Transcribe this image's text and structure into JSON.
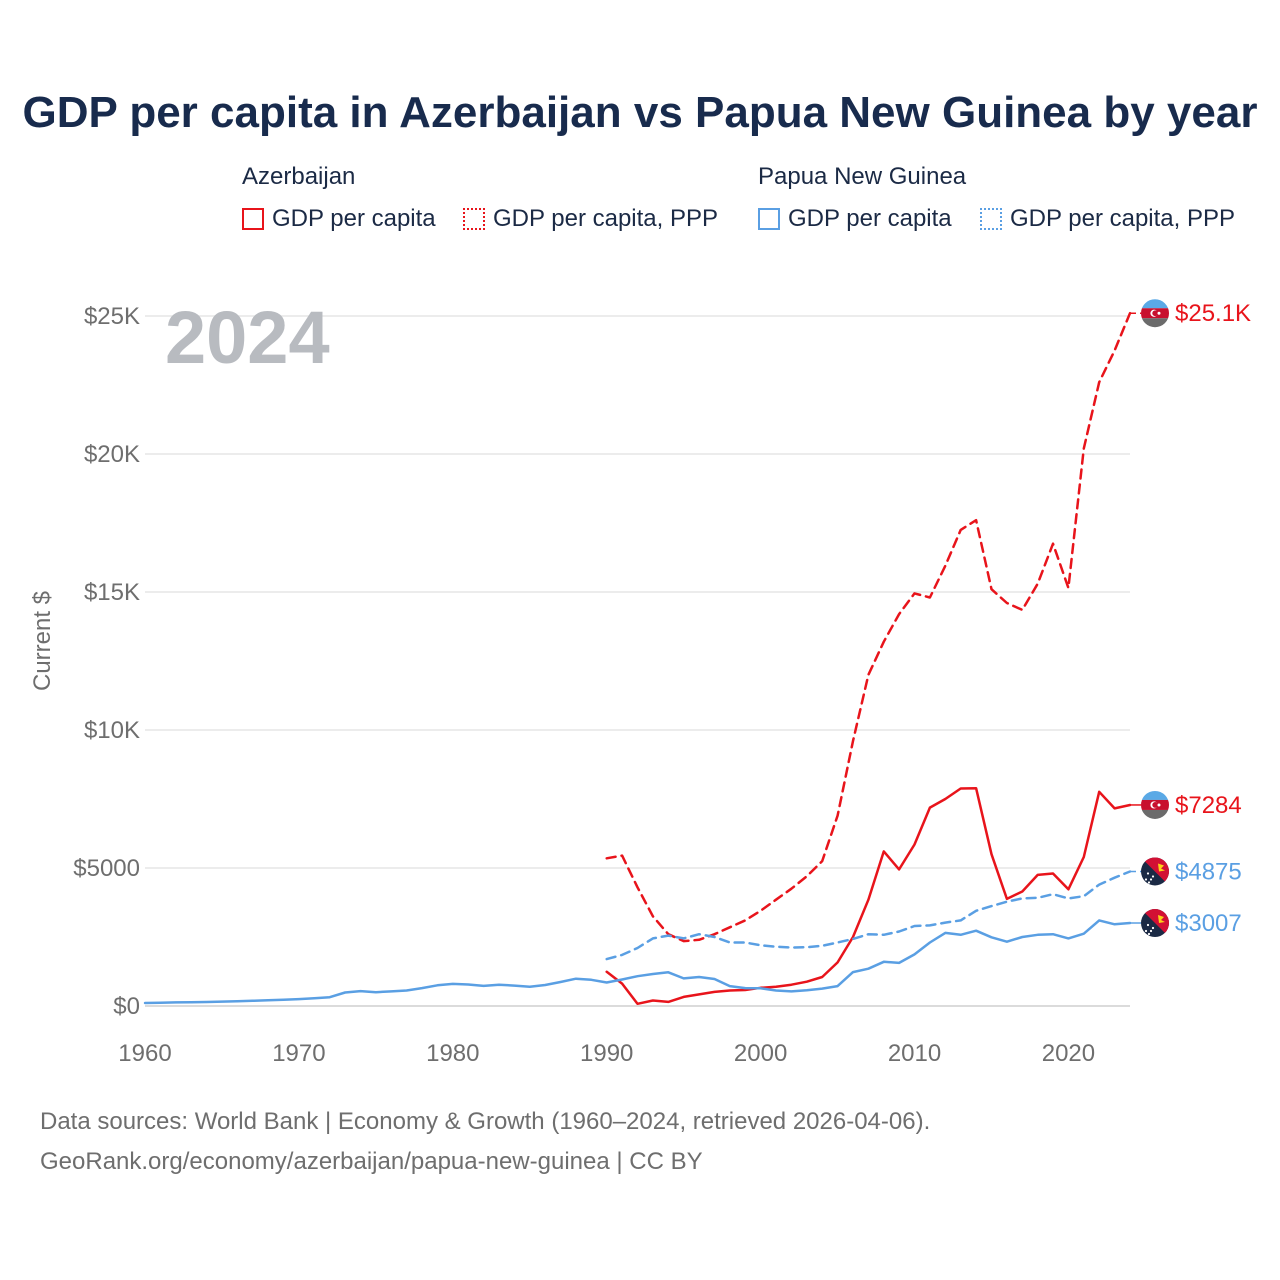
{
  "page": {
    "title": "GDP per capita in Azerbaijan vs Papua New Guinea by year",
    "year_watermark": "2024",
    "footer_line1": "Data sources: World Bank | Economy & Growth (1960–2024, retrieved 2026-04-06).",
    "footer_line2": "GeoRank.org/economy/azerbaijan/papua-new-guinea | CC BY"
  },
  "legend": {
    "groups": [
      {
        "name": "Azerbaijan",
        "items": [
          "GDP per capita",
          "GDP per capita, PPP"
        ],
        "color": "#e8141b"
      },
      {
        "name": "Papua New Guinea",
        "items": [
          "GDP per capita",
          "GDP per capita, PPP"
        ],
        "color": "#5a9fe3"
      }
    ]
  },
  "chart_data": {
    "type": "line",
    "title": "GDP per capita in Azerbaijan vs Papua New Guinea by year",
    "xlabel": "",
    "ylabel": "Current $",
    "xlim": [
      1960,
      2024
    ],
    "ylim": [
      0,
      25000
    ],
    "x_ticks": [
      1960,
      1970,
      1980,
      1990,
      2000,
      2010,
      2020
    ],
    "x_tick_labels": [
      "1960",
      "1970",
      "1980",
      "1990",
      "2000",
      "2010",
      "2020"
    ],
    "y_ticks": [
      0,
      5000,
      10000,
      15000,
      20000,
      25000
    ],
    "y_tick_labels": [
      "$0",
      "$5000",
      "$10K",
      "$15K",
      "$20K",
      "$25K"
    ],
    "grid": true,
    "series": [
      {
        "name": "Azerbaijan GDP per capita, PPP",
        "country": "Azerbaijan",
        "color": "#e8141b",
        "dash": "dashed",
        "end_label": "$25.1K",
        "x": [
          1990,
          1991,
          1992,
          1993,
          1994,
          1995,
          1996,
          1997,
          1998,
          1999,
          2000,
          2001,
          2002,
          2003,
          2004,
          2005,
          2006,
          2007,
          2008,
          2009,
          2010,
          2011,
          2012,
          2013,
          2014,
          2015,
          2016,
          2017,
          2018,
          2019,
          2020,
          2021,
          2022,
          2023,
          2024
        ],
        "values": [
          5350,
          5450,
          4300,
          3250,
          2600,
          2350,
          2400,
          2600,
          2850,
          3100,
          3450,
          3850,
          4250,
          4700,
          5250,
          6900,
          9600,
          12000,
          13200,
          14200,
          14950,
          14800,
          15950,
          17250,
          17600,
          15100,
          14600,
          14350,
          15300,
          16750,
          15150,
          20200,
          22600,
          23750,
          25100
        ]
      },
      {
        "name": "Azerbaijan GDP per capita",
        "country": "Azerbaijan",
        "color": "#e8141b",
        "dash": "solid",
        "end_label": "$7284",
        "x": [
          1990,
          1991,
          1992,
          1993,
          1994,
          1995,
          1996,
          1997,
          1998,
          1999,
          2000,
          2001,
          2002,
          2003,
          2004,
          2005,
          2006,
          2007,
          2008,
          2009,
          2010,
          2011,
          2012,
          2013,
          2014,
          2015,
          2016,
          2017,
          2018,
          2019,
          2020,
          2021,
          2022,
          2023,
          2024
        ],
        "values": [
          1240,
          810,
          80,
          200,
          150,
          330,
          420,
          510,
          560,
          580,
          660,
          700,
          770,
          880,
          1050,
          1580,
          2500,
          3850,
          5600,
          4950,
          5850,
          7190,
          7500,
          7880,
          7890,
          5500,
          3880,
          4150,
          4750,
          4800,
          4230,
          5400,
          7760,
          7160,
          7284
        ]
      },
      {
        "name": "Papua New Guinea GDP per capita, PPP",
        "country": "Papua New Guinea",
        "color": "#5a9fe3",
        "dash": "dashed",
        "end_label": "$4875",
        "x": [
          1990,
          1991,
          1992,
          1993,
          1994,
          1995,
          1996,
          1997,
          1998,
          1999,
          2000,
          2001,
          2002,
          2003,
          2004,
          2005,
          2006,
          2007,
          2008,
          2009,
          2010,
          2011,
          2012,
          2013,
          2014,
          2015,
          2016,
          2017,
          2018,
          2019,
          2020,
          2021,
          2022,
          2023,
          2024
        ],
        "values": [
          1700,
          1850,
          2100,
          2450,
          2550,
          2450,
          2600,
          2500,
          2300,
          2300,
          2200,
          2150,
          2120,
          2130,
          2180,
          2300,
          2430,
          2600,
          2580,
          2700,
          2900,
          2920,
          3020,
          3100,
          3450,
          3620,
          3780,
          3900,
          3920,
          4050,
          3900,
          3980,
          4400,
          4650,
          4875
        ]
      },
      {
        "name": "Papua New Guinea GDP per capita",
        "country": "Papua New Guinea",
        "color": "#5a9fe3",
        "dash": "solid",
        "end_label": "$3007",
        "x": [
          1960,
          1961,
          1962,
          1963,
          1964,
          1965,
          1966,
          1967,
          1968,
          1969,
          1970,
          1971,
          1972,
          1973,
          1974,
          1975,
          1976,
          1977,
          1978,
          1979,
          1980,
          1981,
          1982,
          1983,
          1984,
          1985,
          1986,
          1987,
          1988,
          1989,
          1990,
          1991,
          1992,
          1993,
          1994,
          1995,
          1996,
          1997,
          1998,
          1999,
          2000,
          2001,
          2002,
          2003,
          2004,
          2005,
          2006,
          2007,
          2008,
          2009,
          2010,
          2011,
          2012,
          2013,
          2014,
          2015,
          2016,
          2017,
          2018,
          2019,
          2020,
          2021,
          2022,
          2023,
          2024
        ],
        "values": [
          110,
          120,
          130,
          135,
          145,
          160,
          175,
          190,
          210,
          230,
          250,
          280,
          320,
          490,
          540,
          500,
          530,
          560,
          650,
          750,
          800,
          780,
          730,
          770,
          740,
          700,
          760,
          870,
          990,
          950,
          850,
          960,
          1080,
          1160,
          1220,
          1000,
          1050,
          980,
          720,
          650,
          640,
          560,
          530,
          570,
          630,
          720,
          1230,
          1350,
          1600,
          1560,
          1870,
          2300,
          2650,
          2580,
          2730,
          2490,
          2330,
          2500,
          2580,
          2600,
          2450,
          2620,
          3100,
          2960,
          3007
        ]
      }
    ]
  }
}
